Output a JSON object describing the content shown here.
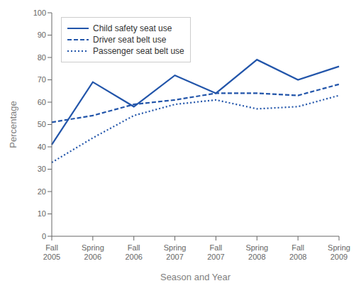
{
  "chart_data": {
    "type": "line",
    "xlabel": "Season and Year",
    "ylabel": "Percentage",
    "categories": [
      "Fall\n2005",
      "Spring\n2006",
      "Fall\n2006",
      "Spring\n2007",
      "Fall\n2007",
      "Spring\n2008",
      "Fall\n2008",
      "Spring\n2009"
    ],
    "series": [
      {
        "name": "Child safety seat use",
        "color": "#2255aa",
        "line_style": "solid",
        "values": [
          41,
          69,
          58,
          72,
          64,
          79,
          70,
          76
        ]
      },
      {
        "name": "Driver seat belt use",
        "color": "#2255aa",
        "line_style": "dashed",
        "values": [
          51,
          54,
          59,
          61,
          64,
          64,
          63,
          68
        ]
      },
      {
        "name": "Passenger seat belt use",
        "color": "#2255aa",
        "line_style": "dotted",
        "values": [
          33,
          44,
          54,
          59,
          61,
          57,
          58,
          63
        ]
      }
    ],
    "ylim": [
      0,
      100
    ],
    "yticks": [
      0,
      10,
      20,
      30,
      40,
      50,
      60,
      70,
      80,
      90,
      100
    ],
    "grid": false,
    "legend": "upper left"
  }
}
